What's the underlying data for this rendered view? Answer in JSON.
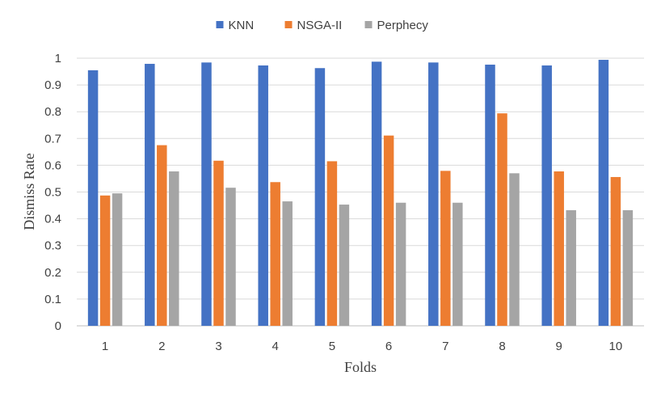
{
  "chart_data": {
    "type": "bar",
    "title": "",
    "xlabel": "Folds",
    "ylabel": "Dismiss Rate",
    "categories": [
      "1",
      "2",
      "3",
      "4",
      "5",
      "6",
      "7",
      "8",
      "9",
      "10"
    ],
    "ylim": [
      0,
      1
    ],
    "yticks": [
      "0",
      "0.1",
      "0.2",
      "0.3",
      "0.4",
      "0.5",
      "0.6",
      "0.7",
      "0.8",
      "0.9",
      "1"
    ],
    "grid": true,
    "legend_position": "top",
    "series": [
      {
        "name": "KNN",
        "color": "#4472C4",
        "values": [
          0.955,
          0.979,
          0.984,
          0.973,
          0.963,
          0.987,
          0.984,
          0.976,
          0.973,
          0.994
        ]
      },
      {
        "name": "NSGA-II",
        "color": "#ED7D31",
        "values": [
          0.487,
          0.675,
          0.617,
          0.537,
          0.615,
          0.711,
          0.579,
          0.794,
          0.577,
          0.556
        ]
      },
      {
        "name": "Perphecy",
        "color": "#A5A5A5",
        "values": [
          0.495,
          0.577,
          0.516,
          0.465,
          0.453,
          0.46,
          0.46,
          0.57,
          0.432,
          0.432
        ]
      }
    ]
  }
}
